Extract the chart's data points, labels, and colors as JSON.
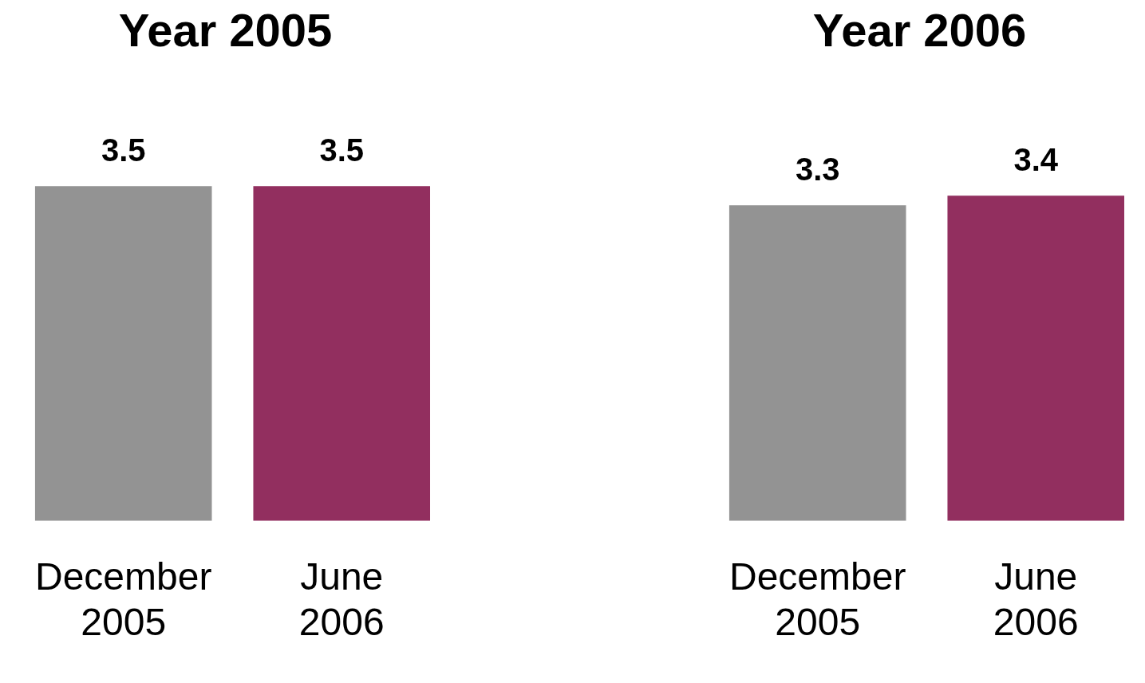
{
  "chart_data": [
    {
      "type": "bar",
      "title": "Year 2005",
      "categories": [
        "December 2005",
        "June 2006"
      ],
      "values": [
        3.5,
        3.5
      ],
      "colors": [
        "#939393",
        "#922f5f"
      ],
      "data_labels": true,
      "grid": false,
      "legend": false
    },
    {
      "type": "bar",
      "title": "Year 2006",
      "categories": [
        "December 2005",
        "June 2006"
      ],
      "values": [
        3.3,
        3.4
      ],
      "colors": [
        "#939393",
        "#922f5f"
      ],
      "data_labels": true,
      "grid": false,
      "legend": false
    }
  ]
}
